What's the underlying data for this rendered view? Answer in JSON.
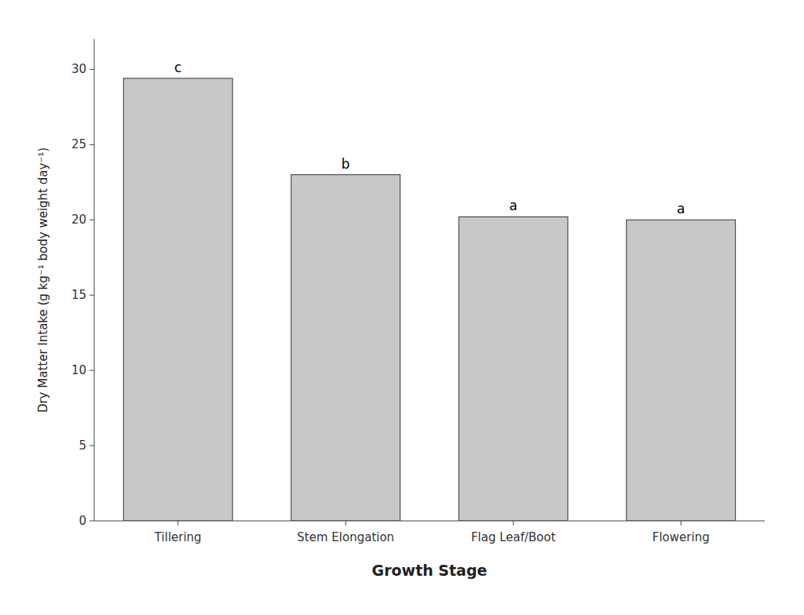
{
  "chart_data": {
    "type": "bar",
    "categories": [
      "Tillering",
      "Stem Elongation",
      "Flag Leaf/Boot",
      "Flowering"
    ],
    "values": [
      29.4,
      23.0,
      20.2,
      20.0
    ],
    "annotations": [
      "c",
      "b",
      "a",
      "a"
    ],
    "color": "#C8C8C8",
    "xlabel": "Growth Stage",
    "ylabel": "Dry Matter Intake (g kg⁻¹ body weight day⁻¹)",
    "ylim": [
      0,
      32
    ],
    "yticks": [
      0,
      5,
      10,
      15,
      20,
      25,
      30
    ],
    "grid": false
  }
}
